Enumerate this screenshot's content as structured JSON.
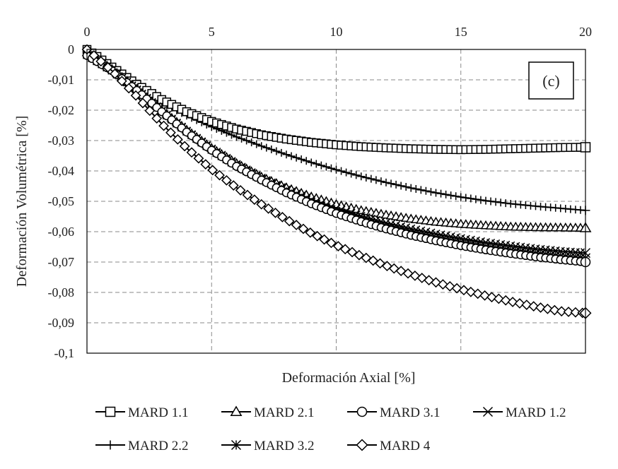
{
  "chart_data": {
    "type": "line",
    "xlabel": "Deformación Axial [%]",
    "ylabel": "Deformación Volumétrica [%]",
    "xlim": [
      0,
      20
    ],
    "ylim": [
      -0.1,
      0
    ],
    "x_axis_position": "top",
    "x_ticks": [
      0,
      5,
      10,
      15,
      20
    ],
    "x_tick_labels": [
      "0",
      "5",
      "10",
      "15",
      "20"
    ],
    "y_ticks": [
      0,
      -0.01,
      -0.02,
      -0.03,
      -0.04,
      -0.05,
      -0.06,
      -0.07,
      -0.08,
      -0.09,
      -0.1
    ],
    "y_tick_labels": [
      "0",
      "-0,01",
      "-0,02",
      "-0,03",
      "-0,04",
      "-0,05",
      "-0,06",
      "-0,07",
      "-0,08",
      "-0,09",
      "-0,1"
    ],
    "grid": true,
    "grid_style": "dashed",
    "legend_position": "bottom",
    "panel_label": "(c)",
    "series": [
      {
        "name": "MARD 1.1",
        "marker": "square",
        "color": "#000000",
        "x": [
          0,
          1,
          2,
          3,
          4,
          5,
          6,
          7,
          8,
          9,
          10,
          11,
          12,
          13,
          14,
          15,
          16,
          17,
          18,
          19,
          20
        ],
        "y": [
          0,
          -0.0058,
          -0.0115,
          -0.0165,
          -0.0205,
          -0.0237,
          -0.0262,
          -0.0281,
          -0.0295,
          -0.0306,
          -0.0314,
          -0.032,
          -0.0324,
          -0.0327,
          -0.0329,
          -0.033,
          -0.0329,
          -0.0327,
          -0.0325,
          -0.0323,
          -0.0322
        ]
      },
      {
        "name": "MARD 2.1",
        "marker": "triangle",
        "color": "#000000",
        "x": [
          0,
          1,
          2,
          3,
          4,
          5,
          6,
          7,
          8,
          9,
          10,
          11,
          12,
          13,
          14,
          15,
          16,
          17,
          18,
          19,
          20
        ],
        "y": [
          -0.001,
          -0.0065,
          -0.013,
          -0.02,
          -0.0265,
          -0.0325,
          -0.0375,
          -0.042,
          -0.0455,
          -0.0485,
          -0.051,
          -0.053,
          -0.0545,
          -0.0558,
          -0.0568,
          -0.0575,
          -0.058,
          -0.0584,
          -0.0586,
          -0.0587,
          -0.0588
        ]
      },
      {
        "name": "MARD 3.1",
        "marker": "circle",
        "color": "#000000",
        "x": [
          0,
          1,
          2,
          3,
          4,
          5,
          6,
          7,
          8,
          9,
          10,
          11,
          12,
          13,
          14,
          15,
          16,
          17,
          18,
          19,
          20
        ],
        "y": [
          -0.002,
          -0.007,
          -0.0135,
          -0.0205,
          -0.0272,
          -0.0332,
          -0.0385,
          -0.043,
          -0.0472,
          -0.0508,
          -0.054,
          -0.0567,
          -0.0591,
          -0.0612,
          -0.063,
          -0.0646,
          -0.066,
          -0.0672,
          -0.0683,
          -0.0692,
          -0.07
        ]
      },
      {
        "name": "MARD 1.2",
        "marker": "x",
        "color": "#000000",
        "x": [
          0,
          1,
          2,
          3,
          4,
          5,
          6,
          7,
          8,
          9,
          10,
          11,
          12,
          13,
          14,
          15,
          16,
          17,
          18,
          19,
          20
        ],
        "y": [
          -0.0015,
          -0.0068,
          -0.0132,
          -0.0202,
          -0.0268,
          -0.0327,
          -0.0378,
          -0.0423,
          -0.0462,
          -0.0495,
          -0.0524,
          -0.0549,
          -0.0571,
          -0.059,
          -0.0607,
          -0.0622,
          -0.0635,
          -0.0646,
          -0.0656,
          -0.0664,
          -0.067
        ]
      },
      {
        "name": "MARD 2.2",
        "marker": "plus",
        "color": "#000000",
        "x": [
          0,
          1,
          2,
          3,
          4,
          5,
          6,
          7,
          8,
          9,
          10,
          11,
          12,
          13,
          14,
          15,
          16,
          17,
          18,
          19,
          20
        ],
        "y": [
          0,
          -0.006,
          -0.012,
          -0.0175,
          -0.0218,
          -0.0255,
          -0.0288,
          -0.0318,
          -0.0346,
          -0.0372,
          -0.0396,
          -0.0418,
          -0.0438,
          -0.0456,
          -0.0472,
          -0.0486,
          -0.0498,
          -0.0508,
          -0.0516,
          -0.0523,
          -0.053
        ]
      },
      {
        "name": "MARD 3.2",
        "marker": "asterisk",
        "color": "#000000",
        "x": [
          0,
          1,
          2,
          3,
          4,
          5,
          6,
          7,
          8,
          9,
          10,
          11,
          12,
          13,
          14,
          15,
          16,
          17,
          18,
          19,
          20
        ],
        "y": [
          -0.0018,
          -0.0069,
          -0.0134,
          -0.0204,
          -0.027,
          -0.033,
          -0.0382,
          -0.0427,
          -0.0467,
          -0.0502,
          -0.0532,
          -0.0558,
          -0.0581,
          -0.0601,
          -0.0619,
          -0.0635,
          -0.0649,
          -0.0661,
          -0.0671,
          -0.068,
          -0.0687
        ]
      },
      {
        "name": "MARD 4",
        "marker": "diamond",
        "color": "#000000",
        "marker_fill": "#ffffff",
        "x": [
          0,
          1,
          2,
          3,
          4,
          5,
          6,
          7,
          8,
          9,
          10,
          11,
          12,
          13,
          14,
          15,
          16,
          17,
          18,
          19,
          20
        ],
        "y": [
          0,
          -0.007,
          -0.0155,
          -0.0245,
          -0.0325,
          -0.0395,
          -0.0455,
          -0.051,
          -0.056,
          -0.0605,
          -0.0645,
          -0.068,
          -0.0712,
          -0.0741,
          -0.0767,
          -0.079,
          -0.0811,
          -0.083,
          -0.0847,
          -0.0862,
          -0.0868
        ]
      }
    ]
  }
}
